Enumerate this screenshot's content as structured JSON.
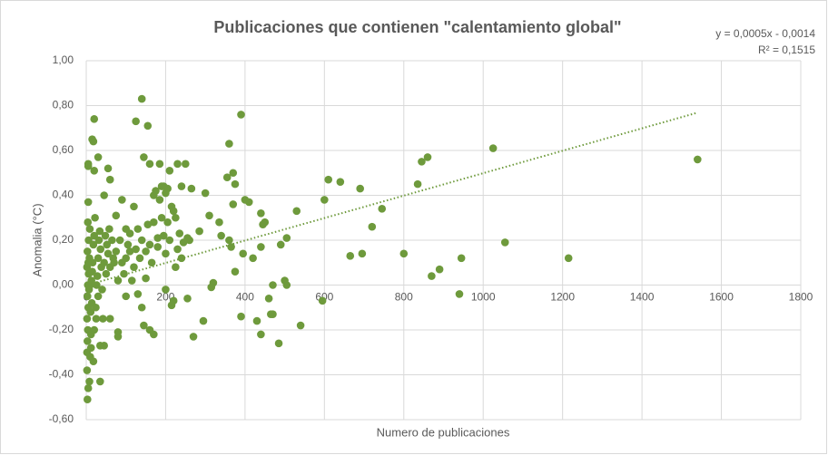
{
  "chart_data": {
    "type": "scatter",
    "title": "Publicaciones que contienen \"calentamiento global\"",
    "x_label": "Numero de publicaciones",
    "y_label": "Anomalia (°C)",
    "annotations": [
      "y = 0,0005x - 0,0014",
      "R² = 0,1515"
    ],
    "trendline": {
      "slope": 0.0005,
      "intercept": -0.0014
    },
    "color": "#6e9a3c",
    "grid": true,
    "xlim": [
      0,
      1800
    ],
    "xticks": [
      0,
      200,
      400,
      600,
      800,
      1000,
      1200,
      1400,
      1600,
      1800
    ],
    "ylim": [
      -0.6,
      1.0
    ],
    "yticks": [
      {
        "value": -0.6,
        "label": "-0,60"
      },
      {
        "value": -0.4,
        "label": "-0,40"
      },
      {
        "value": -0.2,
        "label": "-0,20"
      },
      {
        "value": 0,
        "label": "0,00"
      },
      {
        "value": 0.2,
        "label": "0,20"
      },
      {
        "value": 0.4,
        "label": "0,40"
      },
      {
        "value": 0.6,
        "label": "0,60"
      },
      {
        "value": 0.8,
        "label": "0,80"
      },
      {
        "value": 1.0,
        "label": "1,00"
      }
    ],
    "x": [
      1540,
      1025,
      1055,
      1215,
      945,
      940,
      890,
      870,
      860,
      845,
      835,
      800,
      745,
      720,
      695,
      690,
      665,
      640,
      610,
      600,
      595,
      540,
      530,
      505,
      500,
      505,
      490,
      485,
      470,
      465,
      470,
      460,
      440,
      440,
      445,
      450,
      440,
      430,
      420,
      410,
      400,
      395,
      390,
      390,
      375,
      370,
      370,
      375,
      360,
      355,
      360,
      365,
      340,
      335,
      320,
      315,
      310,
      300,
      295,
      285,
      270,
      265,
      260,
      255,
      255,
      250,
      240,
      230,
      225,
      225,
      220,
      215,
      210,
      205,
      200,
      195,
      185,
      180,
      170,
      170,
      160,
      155,
      140,
      145,
      145,
      140,
      130,
      125,
      120,
      110,
      100,
      90,
      80,
      80,
      75,
      60,
      55,
      45,
      35,
      35,
      30,
      20,
      15,
      18,
      20,
      5,
      5,
      5,
      3,
      5,
      8,
      2,
      2,
      3,
      4,
      2,
      5,
      3,
      4,
      6,
      2,
      5,
      8,
      3,
      6,
      9,
      4,
      10,
      12,
      11,
      14,
      13,
      15,
      16,
      18,
      20,
      22,
      12,
      18,
      20,
      25,
      24,
      26,
      28,
      30,
      32,
      34,
      36,
      38,
      40,
      42,
      45,
      48,
      50,
      52,
      55,
      58,
      60,
      65,
      68,
      70,
      75,
      80,
      85,
      90,
      95,
      100,
      105,
      110,
      115,
      120,
      125,
      130,
      135,
      140,
      150,
      155,
      160,
      165,
      170,
      175,
      180,
      185,
      190,
      195,
      200,
      205,
      210,
      215,
      220,
      230,
      235,
      240,
      245,
      190,
      200,
      160,
      150,
      100,
      60,
      45,
      30,
      10,
      7
    ],
    "y": [
      0.56,
      0.61,
      0.19,
      0.12,
      0.12,
      -0.04,
      0.07,
      0.04,
      0.57,
      0.55,
      0.45,
      0.14,
      0.34,
      0.26,
      0.14,
      0.43,
      0.13,
      0.46,
      0.47,
      0.38,
      -0.07,
      -0.18,
      0.33,
      0.21,
      0.02,
      0.0,
      0.18,
      -0.26,
      -0.13,
      -0.13,
      0.0,
      -0.06,
      -0.22,
      0.17,
      0.27,
      0.28,
      0.32,
      -0.16,
      0.12,
      0.37,
      0.38,
      0.14,
      0.76,
      -0.14,
      0.06,
      0.36,
      0.5,
      0.45,
      0.63,
      0.48,
      0.2,
      0.17,
      0.22,
      0.28,
      0.01,
      -0.01,
      0.31,
      0.41,
      -0.16,
      0.24,
      -0.23,
      0.43,
      0.2,
      0.21,
      -0.06,
      0.54,
      0.44,
      0.54,
      0.3,
      0.08,
      -0.07,
      -0.09,
      0.51,
      0.43,
      -0.02,
      0.44,
      0.54,
      0.21,
      0.28,
      -0.22,
      -0.2,
      0.71,
      0.83,
      0.57,
      -0.18,
      -0.1,
      -0.04,
      0.73,
      0.35,
      0.23,
      0.25,
      0.38,
      -0.21,
      -0.23,
      0.31,
      0.47,
      0.52,
      0.4,
      -0.43,
      -0.27,
      0.57,
      0.74,
      0.65,
      0.64,
      0.51,
      0.54,
      0.53,
      0.37,
      -0.51,
      -0.46,
      -0.43,
      -0.38,
      -0.3,
      -0.25,
      -0.2,
      -0.15,
      -0.1,
      -0.05,
      0.0,
      0.05,
      0.08,
      0.1,
      0.12,
      0.15,
      0.2,
      0.25,
      0.28,
      -0.32,
      -0.22,
      -0.12,
      -0.08,
      0.02,
      0.06,
      0.1,
      0.18,
      0.22,
      0.3,
      -0.28,
      -0.34,
      -0.2,
      -0.15,
      -0.1,
      0.0,
      0.04,
      0.12,
      0.2,
      0.24,
      0.16,
      0.08,
      -0.02,
      -0.15,
      0.1,
      0.22,
      0.05,
      0.18,
      0.14,
      0.25,
      0.08,
      0.2,
      0.12,
      0.1,
      0.15,
      0.02,
      0.2,
      0.1,
      0.05,
      0.12,
      0.18,
      0.15,
      0.02,
      0.08,
      0.16,
      0.25,
      0.12,
      0.2,
      0.15,
      0.27,
      0.18,
      0.1,
      0.4,
      0.42,
      0.17,
      0.38,
      0.3,
      0.22,
      0.14,
      0.28,
      0.2,
      0.35,
      0.33,
      0.16,
      0.23,
      0.12,
      0.19,
      0.44,
      0.41,
      0.54,
      0.03,
      -0.05,
      -0.15,
      -0.27,
      -0.05,
      0.0,
      -0.02
    ]
  }
}
